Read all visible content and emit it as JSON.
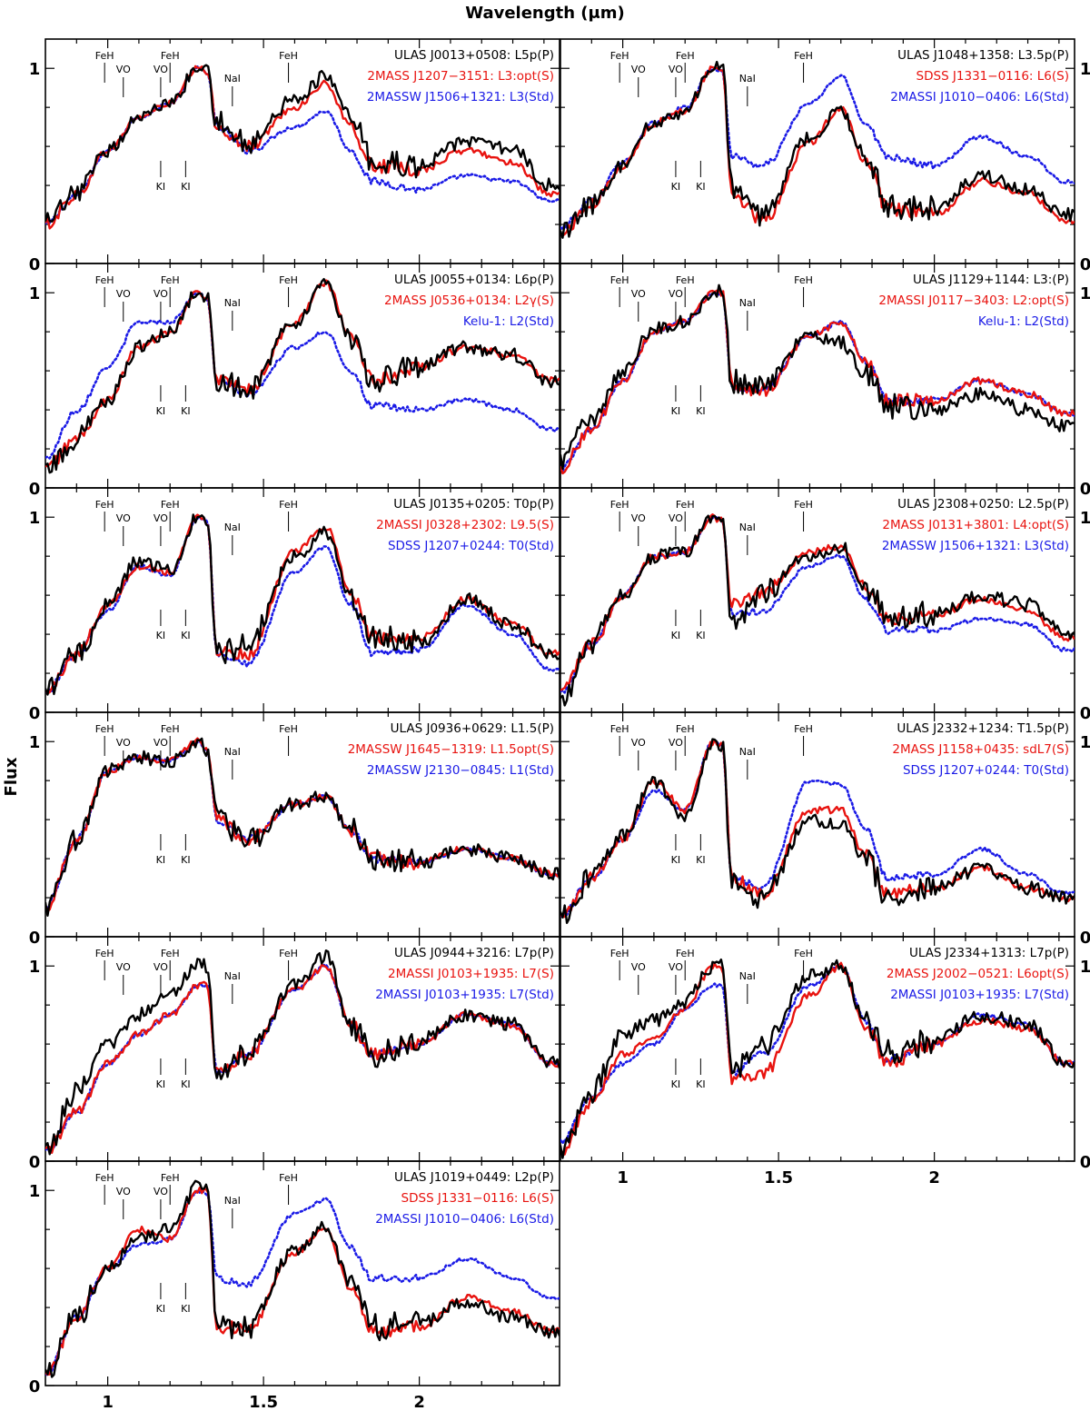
{
  "figure": {
    "top_label": "Wavelength (μm)",
    "y_label": "Flux"
  },
  "chart_data": {
    "type": "line",
    "x_range": [
      0.8,
      2.45
    ],
    "y_range": [
      0,
      1.15
    ],
    "x_ticks": [
      1,
      1.5,
      2
    ],
    "x_tick_labels": [
      "1",
      "1.5",
      "2"
    ],
    "y_ticks": [
      0,
      1
    ],
    "y_tick_labels": [
      "0",
      "1"
    ],
    "series_styles": {
      "target": {
        "color": "#000000",
        "dash": "solid"
      },
      "comparison": {
        "color": "#e8130f",
        "dash": "solid"
      },
      "standard": {
        "color": "#1a1ae6",
        "dash": "dotted"
      }
    },
    "feature_marks": [
      {
        "label": "FeH",
        "x": 0.99,
        "side": "top"
      },
      {
        "label": "VO",
        "x": 1.05,
        "side": "top"
      },
      {
        "label": "VO",
        "x": 1.17,
        "side": "top"
      },
      {
        "label": "FeH",
        "x": 1.2,
        "side": "top"
      },
      {
        "label": "FeH",
        "x": 1.58,
        "side": "top"
      },
      {
        "label": "NaI",
        "x": 1.4,
        "side": "top"
      },
      {
        "label": "KI",
        "x": 1.17,
        "side": "bottom"
      },
      {
        "label": "KI",
        "x": 1.25,
        "side": "bottom"
      }
    ],
    "panels": [
      {
        "target": "ULAS J0013+0508: L5p(P)",
        "comparison": "2MASS J1207−3151: L3:opt(S)",
        "standard": "2MASSW J1506+1321: L3(Std)",
        "anchors": {
          "x": [
            0.8,
            0.9,
            1.0,
            1.1,
            1.2,
            1.29,
            1.32,
            1.35,
            1.45,
            1.6,
            1.7,
            1.78,
            1.85,
            2.0,
            2.15,
            2.3,
            2.42
          ],
          "target": [
            0.2,
            0.35,
            0.58,
            0.75,
            0.82,
            1.0,
            1.02,
            0.72,
            0.62,
            0.84,
            0.96,
            0.75,
            0.52,
            0.5,
            0.63,
            0.58,
            0.4
          ],
          "comparison": [
            0.2,
            0.35,
            0.58,
            0.75,
            0.82,
            1.0,
            0.98,
            0.7,
            0.6,
            0.8,
            0.92,
            0.7,
            0.5,
            0.48,
            0.58,
            0.52,
            0.35
          ],
          "standard": [
            0.2,
            0.35,
            0.58,
            0.75,
            0.82,
            1.0,
            0.98,
            0.7,
            0.58,
            0.7,
            0.78,
            0.58,
            0.42,
            0.38,
            0.45,
            0.42,
            0.32
          ]
        }
      },
      {
        "target": "ULAS J1048+1358: L3.5p(P)",
        "comparison": "SDSS J1331−0116: L6(S)",
        "standard": "2MASSI J1010−0406: L6(Std)",
        "anchors": {
          "x": [
            0.8,
            0.9,
            1.0,
            1.1,
            1.2,
            1.29,
            1.32,
            1.35,
            1.45,
            1.6,
            1.7,
            1.78,
            1.85,
            2.0,
            2.15,
            2.3,
            2.42
          ],
          "target": [
            0.15,
            0.3,
            0.5,
            0.72,
            0.78,
            1.0,
            1.02,
            0.38,
            0.25,
            0.65,
            0.78,
            0.55,
            0.3,
            0.28,
            0.45,
            0.38,
            0.25
          ],
          "comparison": [
            0.15,
            0.3,
            0.5,
            0.72,
            0.78,
            1.0,
            1.0,
            0.36,
            0.22,
            0.62,
            0.8,
            0.52,
            0.28,
            0.25,
            0.42,
            0.36,
            0.22
          ],
          "standard": [
            0.18,
            0.32,
            0.52,
            0.72,
            0.8,
            1.0,
            0.98,
            0.55,
            0.5,
            0.82,
            0.96,
            0.72,
            0.55,
            0.5,
            0.65,
            0.55,
            0.42
          ]
        }
      },
      {
        "target": "ULAS J0055+0134: L6p(P)",
        "comparison": "2MASS J0536+0134: L2γ(S)",
        "standard": "Kelu-1: L2(Std)",
        "anchors": {
          "x": [
            0.8,
            0.9,
            1.0,
            1.1,
            1.2,
            1.29,
            1.32,
            1.35,
            1.45,
            1.6,
            1.7,
            1.78,
            1.85,
            2.0,
            2.15,
            2.3,
            2.42
          ],
          "target": [
            0.1,
            0.25,
            0.45,
            0.72,
            0.8,
            1.0,
            0.98,
            0.55,
            0.5,
            0.85,
            1.05,
            0.78,
            0.55,
            0.62,
            0.72,
            0.68,
            0.55
          ],
          "comparison": [
            0.1,
            0.25,
            0.45,
            0.72,
            0.8,
            1.0,
            0.98,
            0.55,
            0.5,
            0.85,
            1.05,
            0.78,
            0.55,
            0.62,
            0.72,
            0.68,
            0.55
          ],
          "standard": [
            0.15,
            0.4,
            0.62,
            0.85,
            0.85,
            1.0,
            0.96,
            0.55,
            0.48,
            0.72,
            0.8,
            0.6,
            0.42,
            0.4,
            0.45,
            0.4,
            0.3
          ]
        }
      },
      {
        "target": "ULAS J1129+1144: L3:(P)",
        "comparison": "2MASSI J0117−3403: L2:opt(S)",
        "standard": "Kelu-1: L2(Std)",
        "anchors": {
          "x": [
            0.8,
            0.9,
            1.0,
            1.1,
            1.2,
            1.29,
            1.32,
            1.35,
            1.45,
            1.6,
            1.7,
            1.78,
            1.85,
            2.0,
            2.15,
            2.3,
            2.42
          ],
          "target": [
            0.15,
            0.35,
            0.6,
            0.82,
            0.85,
            1.0,
            1.02,
            0.55,
            0.52,
            0.78,
            0.75,
            0.58,
            0.42,
            0.4,
            0.48,
            0.4,
            0.32
          ],
          "comparison": [
            0.1,
            0.3,
            0.55,
            0.8,
            0.85,
            1.0,
            1.0,
            0.52,
            0.5,
            0.78,
            0.85,
            0.65,
            0.45,
            0.45,
            0.55,
            0.48,
            0.38
          ],
          "standard": [
            0.1,
            0.3,
            0.55,
            0.8,
            0.85,
            1.0,
            1.0,
            0.52,
            0.5,
            0.78,
            0.85,
            0.65,
            0.45,
            0.45,
            0.55,
            0.48,
            0.38
          ]
        }
      },
      {
        "target": "ULAS J0135+0205: T0p(P)",
        "comparison": "2MASSI J0328+2302: L9.5(S)",
        "standard": "SDSS J1207+0244: T0(Std)",
        "anchors": {
          "x": [
            0.8,
            0.9,
            1.0,
            1.1,
            1.2,
            1.29,
            1.32,
            1.35,
            1.45,
            1.6,
            1.7,
            1.78,
            1.85,
            2.0,
            2.15,
            2.3,
            2.42
          ],
          "target": [
            0.1,
            0.3,
            0.55,
            0.78,
            0.72,
            1.0,
            0.98,
            0.3,
            0.35,
            0.8,
            0.92,
            0.6,
            0.38,
            0.35,
            0.58,
            0.45,
            0.3
          ],
          "comparison": [
            0.1,
            0.3,
            0.55,
            0.75,
            0.72,
            1.0,
            0.98,
            0.32,
            0.3,
            0.82,
            0.95,
            0.62,
            0.38,
            0.38,
            0.58,
            0.45,
            0.3
          ],
          "standard": [
            0.1,
            0.3,
            0.52,
            0.75,
            0.7,
            1.0,
            0.98,
            0.3,
            0.25,
            0.72,
            0.85,
            0.55,
            0.3,
            0.32,
            0.55,
            0.4,
            0.22
          ]
        }
      },
      {
        "target": "ULAS J2308+0250: L2.5p(P)",
        "comparison": "2MASS J0131+3801: L4:opt(S)",
        "standard": "2MASSW J1506+1321: L3(Std)",
        "anchors": {
          "x": [
            0.8,
            0.9,
            1.0,
            1.1,
            1.2,
            1.29,
            1.32,
            1.35,
            1.45,
            1.6,
            1.7,
            1.78,
            1.85,
            2.0,
            2.15,
            2.3,
            2.42
          ],
          "target": [
            0.05,
            0.35,
            0.6,
            0.8,
            0.82,
            1.0,
            1.0,
            0.45,
            0.62,
            0.8,
            0.85,
            0.65,
            0.48,
            0.5,
            0.6,
            0.55,
            0.4
          ],
          "comparison": [
            0.1,
            0.35,
            0.6,
            0.8,
            0.82,
            1.0,
            0.98,
            0.55,
            0.62,
            0.82,
            0.85,
            0.65,
            0.48,
            0.5,
            0.58,
            0.52,
            0.38
          ],
          "standard": [
            0.1,
            0.35,
            0.6,
            0.8,
            0.82,
            1.0,
            0.98,
            0.5,
            0.52,
            0.75,
            0.8,
            0.58,
            0.42,
            0.42,
            0.48,
            0.45,
            0.32
          ]
        }
      },
      {
        "target": "ULAS J0936+0629: L1.5(P)",
        "comparison": "2MASSW J1645−1319: L1.5opt(S)",
        "standard": "2MASSW J2130−0845: L1(Std)",
        "anchors": {
          "x": [
            0.8,
            0.9,
            1.0,
            1.1,
            1.2,
            1.29,
            1.32,
            1.35,
            1.45,
            1.6,
            1.7,
            1.78,
            1.85,
            2.0,
            2.15,
            2.3,
            2.42
          ],
          "target": [
            0.15,
            0.5,
            0.85,
            0.92,
            0.9,
            1.0,
            0.95,
            0.6,
            0.5,
            0.68,
            0.72,
            0.55,
            0.4,
            0.38,
            0.45,
            0.4,
            0.32
          ],
          "comparison": [
            0.15,
            0.5,
            0.85,
            0.92,
            0.9,
            1.0,
            0.95,
            0.6,
            0.5,
            0.68,
            0.72,
            0.55,
            0.4,
            0.38,
            0.45,
            0.4,
            0.32
          ],
          "standard": [
            0.15,
            0.5,
            0.85,
            0.92,
            0.9,
            1.0,
            0.95,
            0.6,
            0.5,
            0.68,
            0.72,
            0.55,
            0.4,
            0.38,
            0.45,
            0.4,
            0.32
          ]
        }
      },
      {
        "target": "ULAS J2332+1234: T1.5p(P)",
        "comparison": "2MASS J1158+0435: sdL7(S)",
        "standard": "SDSS J1207+0244: T0(Std)",
        "anchors": {
          "x": [
            0.8,
            0.9,
            1.0,
            1.1,
            1.2,
            1.29,
            1.32,
            1.35,
            1.45,
            1.6,
            1.7,
            1.78,
            1.85,
            2.0,
            2.15,
            2.3,
            2.42
          ],
          "target": [
            0.1,
            0.3,
            0.52,
            0.8,
            0.6,
            1.0,
            0.98,
            0.3,
            0.2,
            0.6,
            0.58,
            0.4,
            0.2,
            0.25,
            0.35,
            0.25,
            0.2
          ],
          "comparison": [
            0.1,
            0.3,
            0.5,
            0.8,
            0.65,
            1.0,
            0.98,
            0.3,
            0.22,
            0.65,
            0.65,
            0.42,
            0.22,
            0.25,
            0.35,
            0.25,
            0.2
          ],
          "standard": [
            0.1,
            0.3,
            0.5,
            0.75,
            0.65,
            1.0,
            0.98,
            0.3,
            0.25,
            0.8,
            0.78,
            0.55,
            0.3,
            0.32,
            0.45,
            0.32,
            0.22
          ]
        }
      },
      {
        "target": "ULAS J0944+3216: L7p(P)",
        "comparison": "2MASSI J0103+1935: L7(S)",
        "standard": "2MASSI J0103+1935: L7(Std)",
        "anchors": {
          "x": [
            0.8,
            0.9,
            1.0,
            1.1,
            1.2,
            1.29,
            1.32,
            1.35,
            1.45,
            1.6,
            1.7,
            1.78,
            1.85,
            2.0,
            2.15,
            2.3,
            2.42
          ],
          "target": [
            0.05,
            0.35,
            0.6,
            0.75,
            0.85,
            1.02,
            1.0,
            0.45,
            0.55,
            0.9,
            1.05,
            0.7,
            0.55,
            0.62,
            0.75,
            0.7,
            0.5
          ],
          "comparison": [
            0.05,
            0.25,
            0.5,
            0.65,
            0.75,
            0.9,
            0.9,
            0.45,
            0.55,
            0.88,
            1.0,
            0.7,
            0.55,
            0.6,
            0.75,
            0.7,
            0.5
          ],
          "standard": [
            0.05,
            0.25,
            0.5,
            0.65,
            0.75,
            0.9,
            0.9,
            0.45,
            0.55,
            0.88,
            1.0,
            0.7,
            0.55,
            0.6,
            0.75,
            0.7,
            0.5
          ]
        }
      },
      {
        "target": "ULAS J2334+1313: L7p(P)",
        "comparison": "2MASS J2002−0521: L6opt(S)",
        "standard": "2MASSI J0103+1935: L7(Std)",
        "anchors": {
          "x": [
            0.8,
            0.9,
            1.0,
            1.1,
            1.2,
            1.29,
            1.32,
            1.35,
            1.45,
            1.6,
            1.7,
            1.78,
            1.85,
            2.0,
            2.15,
            2.3,
            2.42
          ],
          "target": [
            0.05,
            0.35,
            0.65,
            0.72,
            0.82,
            1.0,
            1.0,
            0.45,
            0.6,
            0.95,
            1.0,
            0.7,
            0.55,
            0.62,
            0.75,
            0.7,
            0.5
          ],
          "comparison": [
            0.05,
            0.3,
            0.55,
            0.62,
            0.78,
            1.0,
            0.98,
            0.42,
            0.45,
            0.85,
            1.0,
            0.68,
            0.5,
            0.6,
            0.72,
            0.68,
            0.5
          ],
          "standard": [
            0.1,
            0.32,
            0.5,
            0.6,
            0.78,
            0.9,
            0.9,
            0.45,
            0.55,
            0.9,
            1.0,
            0.72,
            0.52,
            0.6,
            0.75,
            0.7,
            0.5
          ]
        }
      },
      {
        "target": "ULAS J1019+0449: L2p(P)",
        "comparison": "SDSS J1331−0116: L6(S)",
        "standard": "2MASSI J1010−0406: L6(Std)",
        "anchors": {
          "x": [
            0.8,
            0.9,
            1.0,
            1.1,
            1.2,
            1.29,
            1.32,
            1.35,
            1.45,
            1.6,
            1.7,
            1.78,
            1.85,
            2.0,
            2.15,
            2.3,
            2.42
          ],
          "target": [
            0.05,
            0.35,
            0.6,
            0.75,
            0.8,
            1.02,
            1.0,
            0.3,
            0.3,
            0.7,
            0.82,
            0.52,
            0.3,
            0.32,
            0.42,
            0.35,
            0.28
          ],
          "comparison": [
            0.05,
            0.35,
            0.6,
            0.8,
            0.75,
            1.0,
            1.0,
            0.3,
            0.3,
            0.68,
            0.8,
            0.5,
            0.28,
            0.3,
            0.45,
            0.38,
            0.28
          ],
          "standard": [
            0.05,
            0.35,
            0.6,
            0.72,
            0.75,
            1.0,
            0.98,
            0.55,
            0.52,
            0.88,
            0.95,
            0.7,
            0.55,
            0.55,
            0.65,
            0.55,
            0.45
          ]
        }
      }
    ]
  }
}
